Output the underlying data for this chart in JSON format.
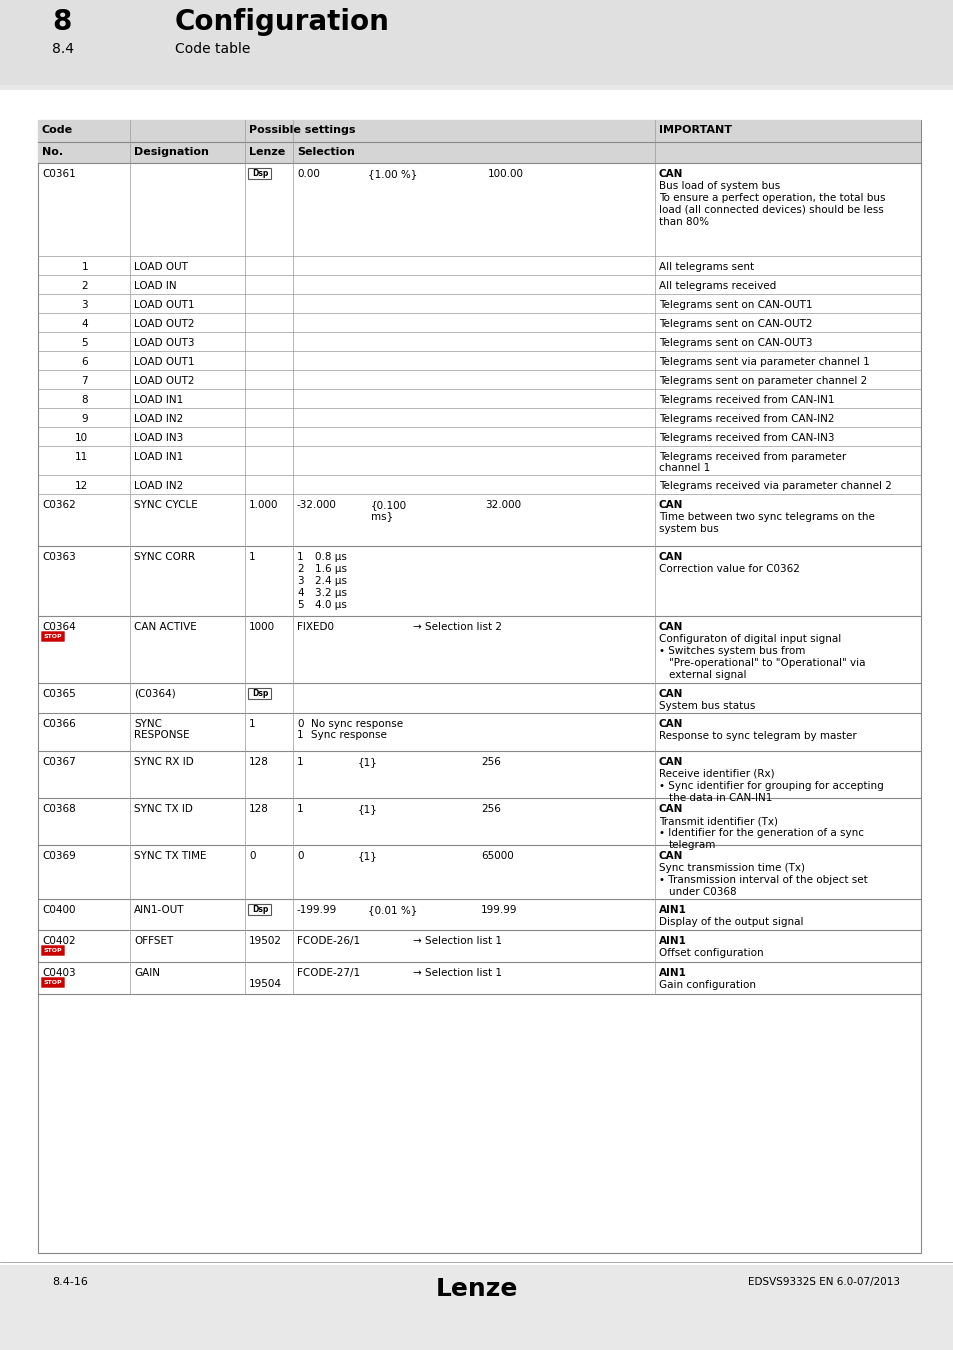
{
  "page_bg": "#e8e8e8",
  "table_bg": "#ffffff",
  "header_section_bg": "#e0e0e0",
  "row_header_bg": "#d0d0d0",
  "footer": {
    "left": "8.4-16",
    "center": "Lenze",
    "right": "EDSVS9332S EN 6.0-07/2013"
  },
  "title": {
    "num": "8",
    "title": "Configuration",
    "sub_num": "8.4",
    "sub_title": "Code table"
  }
}
